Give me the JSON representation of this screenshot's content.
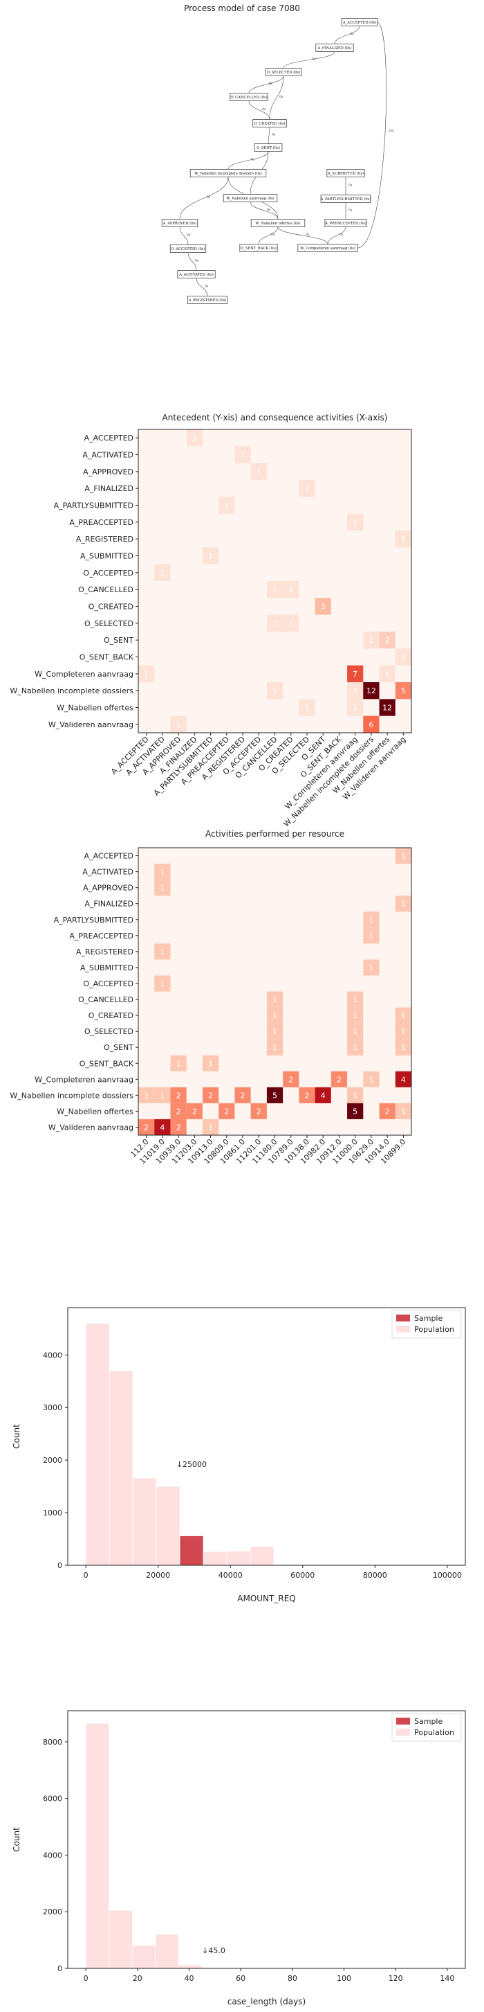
{
  "process_model": {
    "title": "Process model of case 7080",
    "nodes": [
      {
        "id": "A_ACCEPTED",
        "label": "A_ACCEPTED (0s)"
      },
      {
        "id": "A_FINALIZED",
        "label": "A_FINALIZED (0s)"
      },
      {
        "id": "O_SELECTED",
        "label": "O_SELECTED (0s)"
      },
      {
        "id": "O_CANCELLED",
        "label": "O_CANCELLED (0s)"
      },
      {
        "id": "O_CREATED",
        "label": "O_CREATED (0s)"
      },
      {
        "id": "O_SENT",
        "label": "O_SENT (0s)"
      },
      {
        "id": "W_Nabellen_incompl",
        "label": "W_Nabellen incomplete dossiers (0s)"
      },
      {
        "id": "W_Nabellen_aanvraag",
        "label": "W_Nabellen aanvraag (0s)"
      },
      {
        "id": "W_Nabellen_offertes",
        "label": "W_Nabellen offertes (0s)"
      },
      {
        "id": "A_SUBMITTED",
        "label": "A_SUBMITTED (0s)"
      },
      {
        "id": "A_PARTLYSUBMITTED",
        "label": "A_PARTLYSUBMITTED (0s)"
      },
      {
        "id": "A_PREACCEPTED",
        "label": "A_PREACCEPTED (0s)"
      },
      {
        "id": "A_APPROVED",
        "label": "A_APPROVED (0s)"
      },
      {
        "id": "O_ACCEPTED",
        "label": "O_ACCEPTED (0s)"
      },
      {
        "id": "A_ACTIVATED",
        "label": "A_ACTIVATED (0s)"
      },
      {
        "id": "A_REGISTERED",
        "label": "A_REGISTERED (0s)"
      },
      {
        "id": "O_SENT_BACK",
        "label": "O_SENT_BACK (0s)"
      },
      {
        "id": "W_Completeren",
        "label": "W_Completeren aanvraag (0s)"
      }
    ],
    "edges": [
      {
        "from": "A_ACCEPTED",
        "to": "A_FINALIZED",
        "label": "0s"
      },
      {
        "from": "A_FINALIZED",
        "to": "O_SELECTED",
        "label": "0s"
      },
      {
        "from": "O_SELECTED",
        "to": "O_CANCELLED",
        "label": "0s"
      },
      {
        "from": "O_SELECTED",
        "to": "O_CREATED",
        "label": "0s"
      },
      {
        "from": "O_CANCELLED",
        "to": "O_CREATED",
        "label": "0s"
      },
      {
        "from": "O_CREATED",
        "to": "O_SENT",
        "label": "0s"
      },
      {
        "from": "O_SENT",
        "to": "W_Nabellen_incompl",
        "label": "0s"
      },
      {
        "from": "O_SENT",
        "to": "W_Nabellen_aanvraag",
        "label": "0s"
      },
      {
        "from": "W_Nabellen_incompl",
        "to": "W_Nabellen_offertes",
        "label": "7s"
      },
      {
        "from": "W_Nabellen_aanvraag",
        "to": "W_Nabellen_offertes",
        "label": "0s"
      },
      {
        "from": "A_SUBMITTED",
        "to": "A_PARTLYSUBMITTED",
        "label": "0s"
      },
      {
        "from": "A_PARTLYSUBMITTED",
        "to": "A_PREACCEPTED",
        "label": "0s"
      },
      {
        "from": "A_PREACCEPTED",
        "to": "W_Completeren",
        "label": "0s"
      },
      {
        "from": "W_Nabellen_incompl",
        "to": "A_APPROVED",
        "label": "0s"
      },
      {
        "from": "A_APPROVED",
        "to": "O_ACCEPTED",
        "label": "0s"
      },
      {
        "from": "O_ACCEPTED",
        "to": "A_ACTIVATED",
        "label": "0s"
      },
      {
        "from": "A_ACTIVATED",
        "to": "A_REGISTERED",
        "label": "0s"
      },
      {
        "from": "W_Nabellen_offertes",
        "to": "O_SENT_BACK",
        "label": "0s"
      },
      {
        "from": "W_Nabellen_offertes",
        "to": "W_Completeren",
        "label": "0s"
      },
      {
        "from": "W_Completeren",
        "to": "A_ACCEPTED",
        "label": "2m"
      }
    ]
  },
  "chart_data": [
    {
      "type": "heatmap",
      "title": "Antecedent (Y-xis) and consequence activities (X-axis)",
      "rows": [
        "A_ACCEPTED",
        "A_ACTIVATED",
        "A_APPROVED",
        "A_FINALIZED",
        "A_PARTLYSUBMITTED",
        "A_PREACCEPTED",
        "A_REGISTERED",
        "A_SUBMITTED",
        "O_ACCEPTED",
        "O_CANCELLED",
        "O_CREATED",
        "O_SELECTED",
        "O_SENT",
        "O_SENT_BACK",
        "W_Completeren aanvraag",
        "W_Nabellen incomplete dossiers",
        "W_Nabellen offertes",
        "W_Valideren aanvraag"
      ],
      "columns": [
        "A_ACCEPTED",
        "A_ACTIVATED",
        "A_APPROVED",
        "A_FINALIZED",
        "A_PARTLYSUBMITTED",
        "A_PREACCEPTED",
        "A_REGISTERED",
        "O_ACCEPTED",
        "O_CANCELLED",
        "O_CREATED",
        "O_SELECTED",
        "O_SENT",
        "O_SENT_BACK",
        "W_Completeren aanvraag",
        "W_Nabellen incomplete dossiers",
        "W_Nabellen offertes",
        "W_Valideren aanvraag"
      ],
      "cells": [
        {
          "r": 0,
          "c": 3,
          "v": 1
        },
        {
          "r": 1,
          "c": 6,
          "v": 1
        },
        {
          "r": 2,
          "c": 7,
          "v": 1
        },
        {
          "r": 3,
          "c": 10,
          "v": 1
        },
        {
          "r": 4,
          "c": 5,
          "v": 1
        },
        {
          "r": 5,
          "c": 13,
          "v": 1
        },
        {
          "r": 6,
          "c": 16,
          "v": 1
        },
        {
          "r": 7,
          "c": 4,
          "v": 1
        },
        {
          "r": 8,
          "c": 1,
          "v": 1
        },
        {
          "r": 9,
          "c": 8,
          "v": 1
        },
        {
          "r": 9,
          "c": 9,
          "v": 1
        },
        {
          "r": 10,
          "c": 11,
          "v": 3
        },
        {
          "r": 11,
          "c": 8,
          "v": 1
        },
        {
          "r": 11,
          "c": 9,
          "v": 1
        },
        {
          "r": 12,
          "c": 14,
          "v": 1
        },
        {
          "r": 12,
          "c": 15,
          "v": 2
        },
        {
          "r": 13,
          "c": 16,
          "v": 1
        },
        {
          "r": 14,
          "c": 0,
          "v": 1
        },
        {
          "r": 14,
          "c": 13,
          "v": 7
        },
        {
          "r": 14,
          "c": 15,
          "v": 1
        },
        {
          "r": 15,
          "c": 8,
          "v": 1
        },
        {
          "r": 15,
          "c": 13,
          "v": 1
        },
        {
          "r": 15,
          "c": 14,
          "v": 12
        },
        {
          "r": 15,
          "c": 16,
          "v": 5
        },
        {
          "r": 16,
          "c": 10,
          "v": 1
        },
        {
          "r": 16,
          "c": 13,
          "v": 1
        },
        {
          "r": 16,
          "c": 15,
          "v": 12
        },
        {
          "r": 17,
          "c": 2,
          "v": 1
        },
        {
          "r": 17,
          "c": 14,
          "v": 6
        }
      ]
    },
    {
      "type": "heatmap",
      "title": "Activities performed per resource",
      "rows": [
        "A_ACCEPTED",
        "A_ACTIVATED",
        "A_APPROVED",
        "A_FINALIZED",
        "A_PARTLYSUBMITTED",
        "A_PREACCEPTED",
        "A_REGISTERED",
        "A_SUBMITTED",
        "O_ACCEPTED",
        "O_CANCELLED",
        "O_CREATED",
        "O_SELECTED",
        "O_SENT",
        "O_SENT_BACK",
        "W_Completeren aanvraag",
        "W_Nabellen incomplete dossiers",
        "W_Nabellen offertes",
        "W_Valideren aanvraag"
      ],
      "columns": [
        "112.0",
        "11019.0",
        "10939.0",
        "11203.0",
        "10913.0",
        "10809.0",
        "10861.0",
        "11201.0",
        "11180.0",
        "10789.0",
        "10138.0",
        "10982.0",
        "10912.0",
        "11000.0",
        "10629.0",
        "10914.0",
        "10899.0"
      ],
      "cells": [
        {
          "r": 0,
          "c": 16,
          "v": 1
        },
        {
          "r": 1,
          "c": 1,
          "v": 1
        },
        {
          "r": 2,
          "c": 1,
          "v": 1
        },
        {
          "r": 3,
          "c": 16,
          "v": 1
        },
        {
          "r": 4,
          "c": 14,
          "v": 1
        },
        {
          "r": 5,
          "c": 14,
          "v": 1
        },
        {
          "r": 6,
          "c": 1,
          "v": 1
        },
        {
          "r": 7,
          "c": 14,
          "v": 1
        },
        {
          "r": 8,
          "c": 1,
          "v": 1
        },
        {
          "r": 9,
          "c": 8,
          "v": 1
        },
        {
          "r": 9,
          "c": 13,
          "v": 1
        },
        {
          "r": 10,
          "c": 8,
          "v": 1
        },
        {
          "r": 10,
          "c": 13,
          "v": 1
        },
        {
          "r": 10,
          "c": 16,
          "v": 1
        },
        {
          "r": 11,
          "c": 8,
          "v": 1
        },
        {
          "r": 11,
          "c": 13,
          "v": 1
        },
        {
          "r": 11,
          "c": 16,
          "v": 1
        },
        {
          "r": 12,
          "c": 8,
          "v": 1
        },
        {
          "r": 12,
          "c": 13,
          "v": 1
        },
        {
          "r": 12,
          "c": 16,
          "v": 1
        },
        {
          "r": 13,
          "c": 2,
          "v": 1
        },
        {
          "r": 13,
          "c": 4,
          "v": 1
        },
        {
          "r": 14,
          "c": 9,
          "v": 2
        },
        {
          "r": 14,
          "c": 12,
          "v": 2
        },
        {
          "r": 14,
          "c": 14,
          "v": 1
        },
        {
          "r": 14,
          "c": 16,
          "v": 4
        },
        {
          "r": 15,
          "c": 0,
          "v": 1
        },
        {
          "r": 15,
          "c": 1,
          "v": 1
        },
        {
          "r": 15,
          "c": 2,
          "v": 2
        },
        {
          "r": 15,
          "c": 4,
          "v": 2
        },
        {
          "r": 15,
          "c": 6,
          "v": 2
        },
        {
          "r": 15,
          "c": 8,
          "v": 5
        },
        {
          "r": 15,
          "c": 10,
          "v": 2
        },
        {
          "r": 15,
          "c": 11,
          "v": 4
        },
        {
          "r": 15,
          "c": 13,
          "v": 1
        },
        {
          "r": 16,
          "c": 2,
          "v": 2
        },
        {
          "r": 16,
          "c": 3,
          "v": 2
        },
        {
          "r": 16,
          "c": 5,
          "v": 2
        },
        {
          "r": 16,
          "c": 7,
          "v": 2
        },
        {
          "r": 16,
          "c": 13,
          "v": 5
        },
        {
          "r": 16,
          "c": 15,
          "v": 2
        },
        {
          "r": 16,
          "c": 16,
          "v": 1
        },
        {
          "r": 17,
          "c": 0,
          "v": 2
        },
        {
          "r": 17,
          "c": 1,
          "v": 4
        },
        {
          "r": 17,
          "c": 2,
          "v": 2
        },
        {
          "r": 17,
          "c": 4,
          "v": 1
        }
      ]
    },
    {
      "type": "bar",
      "title": "",
      "xlabel": "AMOUNT_REQ",
      "ylabel": "Count",
      "xlim": [
        -5000,
        105000
      ],
      "ylim": [
        0,
        4900
      ],
      "xticks": [
        0,
        20000,
        40000,
        60000,
        80000,
        100000
      ],
      "yticks": [
        0,
        1000,
        2000,
        3000,
        4000
      ],
      "series": [
        {
          "name": "Population",
          "color": "#fde0df",
          "bins": [
            {
              "x0": 0,
              "x1": 6500,
              "v": 4600
            },
            {
              "x0": 6500,
              "x1": 13000,
              "v": 3700
            },
            {
              "x0": 13000,
              "x1": 19500,
              "v": 1660
            },
            {
              "x0": 19500,
              "x1": 26000,
              "v": 1500
            },
            {
              "x0": 26000,
              "x1": 32500,
              "v": 560
            },
            {
              "x0": 32500,
              "x1": 39000,
              "v": 260
            },
            {
              "x0": 39000,
              "x1": 45500,
              "v": 270
            },
            {
              "x0": 45500,
              "x1": 52000,
              "v": 360
            }
          ]
        },
        {
          "name": "Sample",
          "color": "#d0474f",
          "bins": [
            {
              "x0": 26000,
              "x1": 32500,
              "v": 560
            }
          ]
        }
      ],
      "annotation": {
        "text": "↓25000",
        "x": 25000
      }
    },
    {
      "type": "bar",
      "title": "",
      "xlabel": "case_length (days)",
      "ylabel": "Count",
      "xlim": [
        -7,
        147
      ],
      "ylim": [
        0,
        9100
      ],
      "xticks": [
        0,
        20,
        40,
        60,
        80,
        100,
        120,
        140
      ],
      "yticks": [
        0,
        2000,
        4000,
        6000,
        8000
      ],
      "series": [
        {
          "name": "Population",
          "color": "#fde0df",
          "bins": [
            {
              "x0": 0,
              "x1": 9,
              "v": 8650
            },
            {
              "x0": 9,
              "x1": 18,
              "v": 2050
            },
            {
              "x0": 18,
              "x1": 27,
              "v": 820
            },
            {
              "x0": 27,
              "x1": 36,
              "v": 1200
            },
            {
              "x0": 36,
              "x1": 45,
              "v": 120
            }
          ]
        },
        {
          "name": "Sample",
          "color": "#d0474f",
          "bins": [
            {
              "x0": 45,
              "x1": 54,
              "v": 15
            }
          ]
        }
      ],
      "annotation": {
        "text": "↓45.0",
        "x": 45
      }
    }
  ]
}
